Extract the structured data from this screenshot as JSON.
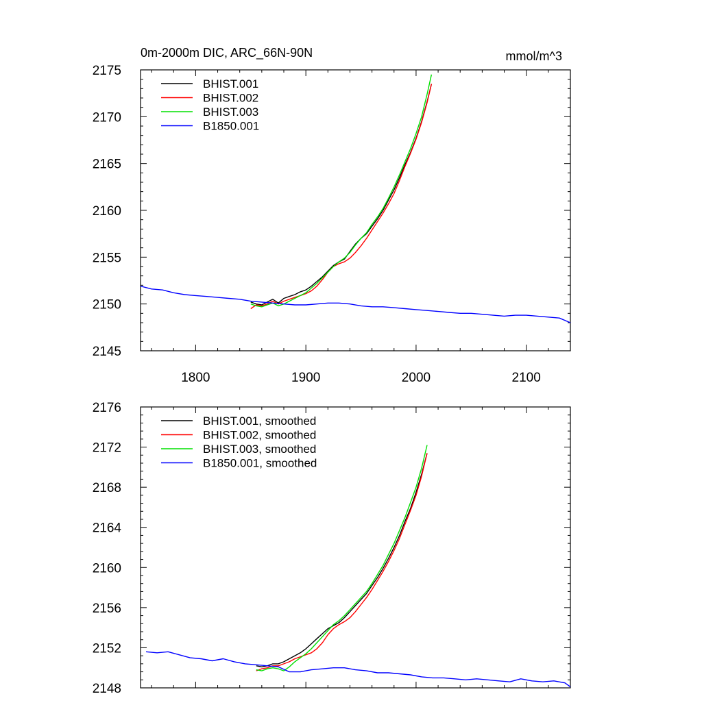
{
  "chart_data": [
    {
      "type": "line",
      "title": "0m-2000m DIC, ARC_66N-90N",
      "units": "mmol/m^3",
      "xlabel": "",
      "ylabel": "",
      "xlim": [
        1750,
        2140
      ],
      "ylim": [
        2145,
        2175
      ],
      "xticks": [
        1800,
        1900,
        2000,
        2100
      ],
      "xtick_labels": [
        "1800",
        "1900",
        "2000",
        "2100"
      ],
      "yticks": [
        2145,
        2150,
        2155,
        2160,
        2165,
        2170,
        2175
      ],
      "ytick_labels": [
        "2145",
        "2150",
        "2155",
        "2160",
        "2165",
        "2170",
        "2175"
      ],
      "legend_position": "top-left",
      "series": [
        {
          "name": "BHIST.001",
          "color": "#000000",
          "x": [
            1850,
            1855,
            1860,
            1865,
            1870,
            1875,
            1880,
            1885,
            1890,
            1895,
            1900,
            1905,
            1910,
            1915,
            1920,
            1925,
            1930,
            1935,
            1940,
            1945,
            1950,
            1955,
            1960,
            1965,
            1970,
            1975,
            1980,
            1985,
            1990,
            1995,
            2000,
            2005,
            2010,
            2014
          ],
          "y": [
            2150.2,
            2150.0,
            2149.9,
            2150.2,
            2150.5,
            2150.1,
            2150.6,
            2150.8,
            2151.0,
            2151.3,
            2151.5,
            2151.9,
            2152.4,
            2152.9,
            2153.5,
            2154.1,
            2154.5,
            2154.8,
            2155.6,
            2156.4,
            2157.0,
            2157.5,
            2158.3,
            2159.1,
            2160.0,
            2161.1,
            2162.2,
            2163.5,
            2164.9,
            2166.2,
            2167.7,
            2169.5,
            2171.6,
            2173.5
          ]
        },
        {
          "name": "BHIST.002",
          "color": "#ff0000",
          "x": [
            1850,
            1855,
            1860,
            1865,
            1870,
            1875,
            1880,
            1885,
            1890,
            1895,
            1900,
            1905,
            1910,
            1915,
            1920,
            1925,
            1930,
            1935,
            1940,
            1945,
            1950,
            1955,
            1960,
            1965,
            1970,
            1975,
            1980,
            1985,
            1990,
            1995,
            2000,
            2005,
            2010,
            2014
          ],
          "y": [
            2149.5,
            2149.9,
            2149.8,
            2150.0,
            2150.3,
            2150.0,
            2150.3,
            2150.5,
            2150.7,
            2150.9,
            2151.1,
            2151.4,
            2151.9,
            2152.6,
            2153.4,
            2154.0,
            2154.3,
            2154.5,
            2154.9,
            2155.5,
            2156.2,
            2157.0,
            2157.9,
            2158.8,
            2159.7,
            2160.7,
            2161.8,
            2163.2,
            2164.7,
            2166.1,
            2167.6,
            2169.4,
            2171.5,
            2173.5
          ]
        },
        {
          "name": "BHIST.003",
          "color": "#00e000",
          "x": [
            1850,
            1855,
            1860,
            1865,
            1870,
            1875,
            1880,
            1885,
            1890,
            1895,
            1900,
            1905,
            1910,
            1915,
            1920,
            1925,
            1930,
            1935,
            1940,
            1945,
            1950,
            1955,
            1960,
            1965,
            1970,
            1975,
            1980,
            1985,
            1990,
            1995,
            2000,
            2005,
            2010,
            2014
          ],
          "y": [
            2150.0,
            2149.8,
            2149.7,
            2149.9,
            2150.1,
            2149.8,
            2150.0,
            2150.3,
            2150.6,
            2150.9,
            2151.2,
            2151.7,
            2152.2,
            2152.8,
            2153.4,
            2154.0,
            2154.5,
            2154.9,
            2155.5,
            2156.3,
            2157.0,
            2157.6,
            2158.5,
            2159.3,
            2160.2,
            2161.3,
            2162.5,
            2163.8,
            2165.2,
            2166.6,
            2168.2,
            2170.0,
            2172.4,
            2174.5
          ]
        },
        {
          "name": "B1850.001",
          "color": "#0000ff",
          "x": [
            1750,
            1760,
            1770,
            1780,
            1790,
            1800,
            1810,
            1820,
            1830,
            1840,
            1850,
            1860,
            1870,
            1880,
            1890,
            1900,
            1910,
            1920,
            1930,
            1940,
            1950,
            1960,
            1970,
            1980,
            1990,
            2000,
            2010,
            2020,
            2030,
            2040,
            2050,
            2060,
            2070,
            2080,
            2090,
            2100,
            2110,
            2120,
            2130,
            2140
          ],
          "y": [
            2151.9,
            2151.6,
            2151.5,
            2151.2,
            2151.0,
            2150.9,
            2150.8,
            2150.7,
            2150.6,
            2150.5,
            2150.3,
            2150.2,
            2150.1,
            2150.0,
            2149.9,
            2149.9,
            2150.0,
            2150.1,
            2150.1,
            2150.0,
            2149.8,
            2149.7,
            2149.7,
            2149.6,
            2149.5,
            2149.4,
            2149.3,
            2149.2,
            2149.1,
            2149.0,
            2149.0,
            2148.9,
            2148.8,
            2148.7,
            2148.8,
            2148.8,
            2148.7,
            2148.6,
            2148.5,
            2148.0
          ]
        }
      ]
    },
    {
      "type": "line",
      "title": "",
      "xlabel": "",
      "ylabel": "",
      "xlim": [
        1750,
        2140
      ],
      "ylim": [
        2148,
        2176
      ],
      "xticks": [
        1800,
        1900,
        2000,
        2100
      ],
      "xtick_labels": [],
      "yticks": [
        2148,
        2152,
        2156,
        2160,
        2164,
        2168,
        2172,
        2176
      ],
      "ytick_labels": [
        "2148",
        "2152",
        "2156",
        "2160",
        "2164",
        "2168",
        "2172",
        "2176"
      ],
      "legend_position": "top-left",
      "series": [
        {
          "name": "BHIST.001, smoothed",
          "color": "#000000",
          "x": [
            1855,
            1860,
            1865,
            1870,
            1875,
            1880,
            1885,
            1890,
            1895,
            1900,
            1905,
            1910,
            1915,
            1920,
            1925,
            1930,
            1935,
            1940,
            1945,
            1950,
            1955,
            1960,
            1965,
            1970,
            1975,
            1980,
            1985,
            1990,
            1995,
            2000,
            2005,
            2010
          ],
          "y": [
            2150.2,
            2150.1,
            2150.2,
            2150.4,
            2150.4,
            2150.6,
            2150.9,
            2151.2,
            2151.5,
            2151.9,
            2152.4,
            2152.9,
            2153.4,
            2153.9,
            2154.2,
            2154.5,
            2155.0,
            2155.6,
            2156.2,
            2156.8,
            2157.4,
            2158.2,
            2159.0,
            2159.9,
            2160.9,
            2162.0,
            2163.2,
            2164.6,
            2165.9,
            2167.5,
            2169.3,
            2171.4
          ]
        },
        {
          "name": "BHIST.002, smoothed",
          "color": "#ff0000",
          "x": [
            1855,
            1860,
            1865,
            1870,
            1875,
            1880,
            1885,
            1890,
            1895,
            1900,
            1905,
            1910,
            1915,
            1920,
            1925,
            1930,
            1935,
            1940,
            1945,
            1950,
            1955,
            1960,
            1965,
            1970,
            1975,
            1980,
            1985,
            1990,
            1995,
            2000,
            2005,
            2010
          ],
          "y": [
            2149.7,
            2149.9,
            2150.0,
            2150.2,
            2150.2,
            2150.4,
            2150.6,
            2150.9,
            2151.1,
            2151.3,
            2151.5,
            2151.9,
            2152.5,
            2153.3,
            2153.9,
            2154.3,
            2154.6,
            2155.0,
            2155.6,
            2156.3,
            2157.0,
            2157.8,
            2158.7,
            2159.6,
            2160.6,
            2161.7,
            2162.9,
            2164.3,
            2165.7,
            2167.2,
            2169.1,
            2171.4
          ]
        },
        {
          "name": "BHIST.003, smoothed",
          "color": "#00e000",
          "x": [
            1855,
            1860,
            1865,
            1870,
            1875,
            1880,
            1885,
            1890,
            1895,
            1900,
            1905,
            1910,
            1915,
            1920,
            1925,
            1930,
            1935,
            1940,
            1945,
            1950,
            1955,
            1960,
            1965,
            1970,
            1975,
            1980,
            1985,
            1990,
            1995,
            2000,
            2005,
            2010
          ],
          "y": [
            2149.8,
            2149.7,
            2149.9,
            2150.0,
            2149.9,
            2149.7,
            2150.1,
            2150.6,
            2151.0,
            2151.4,
            2151.9,
            2152.5,
            2153.1,
            2153.7,
            2154.3,
            2154.7,
            2155.2,
            2155.8,
            2156.4,
            2157.0,
            2157.6,
            2158.4,
            2159.3,
            2160.2,
            2161.3,
            2162.4,
            2163.7,
            2165.0,
            2166.5,
            2168.0,
            2169.9,
            2172.2
          ]
        },
        {
          "name": "B1850.001, smoothed",
          "color": "#0000ff",
          "x": [
            1755,
            1765,
            1775,
            1785,
            1795,
            1805,
            1815,
            1825,
            1835,
            1845,
            1855,
            1865,
            1875,
            1885,
            1895,
            1905,
            1915,
            1925,
            1935,
            1945,
            1955,
            1965,
            1975,
            1985,
            1995,
            2005,
            2015,
            2025,
            2035,
            2045,
            2055,
            2065,
            2075,
            2085,
            2095,
            2105,
            2115,
            2125,
            2135,
            2140
          ],
          "y": [
            2151.6,
            2151.5,
            2151.6,
            2151.3,
            2151.0,
            2150.9,
            2150.7,
            2150.9,
            2150.6,
            2150.4,
            2150.3,
            2150.2,
            2150.1,
            2149.6,
            2149.6,
            2149.8,
            2149.9,
            2150.0,
            2150.0,
            2149.8,
            2149.7,
            2149.5,
            2149.5,
            2149.4,
            2149.3,
            2149.1,
            2149.0,
            2149.0,
            2148.9,
            2148.8,
            2148.9,
            2148.8,
            2148.7,
            2148.6,
            2148.9,
            2148.7,
            2148.6,
            2148.7,
            2148.5,
            2148.1
          ]
        }
      ]
    }
  ]
}
